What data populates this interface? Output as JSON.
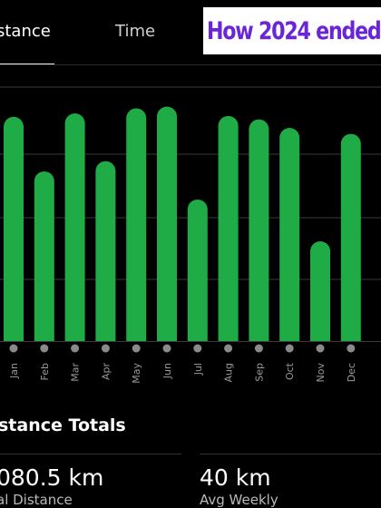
{
  "tabs": [
    {
      "label": "stance",
      "active": true
    },
    {
      "label": "Time",
      "active": false
    }
  ],
  "banner": {
    "text": "How 2024 ended"
  },
  "colors": {
    "bar": "#1fab45",
    "banner_text": "#6a25d6",
    "background": "#000000",
    "grid": "#3a3a3a",
    "dot": "#8a8a8a"
  },
  "chart_data": {
    "type": "bar",
    "categories": [
      "Jan",
      "Feb",
      "Mar",
      "Apr",
      "May",
      "Jun",
      "Jul",
      "Aug",
      "Sep",
      "Oct",
      "Nov",
      "Dec"
    ],
    "values": [
      263,
      199,
      267,
      211,
      273,
      275,
      166,
      264,
      260,
      250,
      117,
      243
    ],
    "ylim": [
      0,
      300
    ],
    "grid": true
  },
  "section": {
    "title": "stance Totals"
  },
  "stats": {
    "total_value": "080.5 km",
    "total_label": "al Distance",
    "weekly_value": "40 km",
    "weekly_label": "Avg Weekly"
  }
}
